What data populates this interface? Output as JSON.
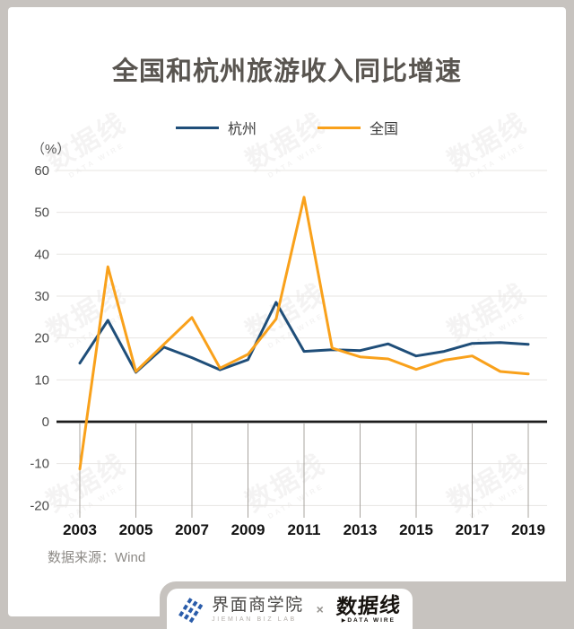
{
  "chart_data": {
    "type": "line",
    "title": "全国和杭州旅游收入同比增速",
    "unit_label": "（%）",
    "x": [
      2003,
      2004,
      2005,
      2006,
      2007,
      2008,
      2009,
      2010,
      2011,
      2012,
      2013,
      2014,
      2015,
      2016,
      2017,
      2018,
      2019
    ],
    "x_tick_labels": [
      "2003",
      "2005",
      "2007",
      "2009",
      "2011",
      "2013",
      "2015",
      "2017",
      "2019"
    ],
    "ylim": [
      -20,
      60
    ],
    "y_ticks": [
      60,
      50,
      40,
      30,
      20,
      10,
      0,
      -10,
      -20
    ],
    "grid": true,
    "legend_position": "top",
    "series": [
      {
        "key": "hangzhou",
        "name": "杭州",
        "color": "#1F4E79",
        "values": [
          14.0,
          24.2,
          11.8,
          17.8,
          15.3,
          12.4,
          14.8,
          28.5,
          16.8,
          17.2,
          17.0,
          18.6,
          15.7,
          16.8,
          18.7,
          18.9,
          18.5
        ]
      },
      {
        "key": "national",
        "name": "全国",
        "color": "#F9A11B",
        "values": [
          -11.3,
          37.0,
          12.0,
          18.5,
          24.9,
          12.8,
          16.1,
          24.5,
          53.6,
          17.6,
          15.5,
          15.0,
          12.5,
          14.7,
          15.7,
          12.0,
          11.4
        ]
      }
    ]
  },
  "source": {
    "label": "数据来源：Wind"
  },
  "watermark": {
    "text": "数据线",
    "sub": "DATA WIRE"
  },
  "footer": {
    "jiemian_name": "界面商学院",
    "jiemian_sub": "JIEMIAN BIZ LAB",
    "separator": "×",
    "datawire_name": "数据线",
    "datawire_bullet": "▶",
    "datawire_sub": "DATA WIRE"
  },
  "colors": {
    "page_bg": "#c7c3bf",
    "card_bg": "#ffffff",
    "hangzhou_line": "#1F4E79",
    "national_line": "#F9A11B",
    "zero_axis": "#1c1c1c",
    "gridline": "#e7e5e2",
    "year_guide": "#a8a49f",
    "jiemian_blue": "#2a5caa"
  }
}
